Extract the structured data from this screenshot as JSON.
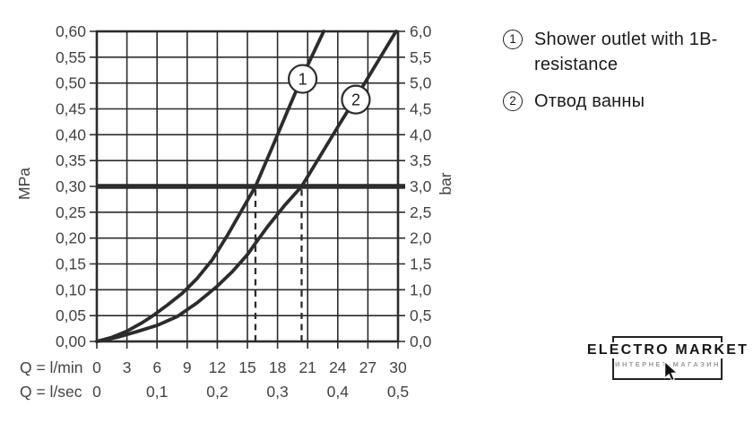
{
  "colors": {
    "background": "#ffffff",
    "line": "#2c2c2c",
    "axis_text": "#434343",
    "legend_text": "#1a1a1a",
    "logo_text": "#161616",
    "logo_subtext": "#9a9a9a"
  },
  "legend": {
    "items": [
      {
        "num": "1",
        "label": "Shower outlet with 1B-\nresistance"
      },
      {
        "num": "2",
        "label": "Отвод ванны"
      }
    ]
  },
  "logo": {
    "title": "ELECTRO MARKET",
    "subtitle": "ИНТЕРНЕТ-МАГАЗИН"
  },
  "chart_data": {
    "type": "line",
    "title": "",
    "grid": true,
    "x": {
      "label": "Q = l/min",
      "min": 0,
      "max": 30,
      "grid_step": 3,
      "tick_labels": [
        "0",
        "3",
        "6",
        "9",
        "12",
        "15",
        "18",
        "21",
        "24",
        "27",
        "30"
      ]
    },
    "x_secondary": {
      "label": "Q = l/sec",
      "ticks": [
        {
          "at": 0,
          "label": "0"
        },
        {
          "at": 6,
          "label": "0,1"
        },
        {
          "at": 12,
          "label": "0,2"
        },
        {
          "at": 18,
          "label": "0,3"
        },
        {
          "at": 24,
          "label": "0,4"
        },
        {
          "at": 30,
          "label": "0,5"
        }
      ]
    },
    "y_left": {
      "label": "MPa",
      "min": 0,
      "max": 0.6,
      "grid_step": 0.05,
      "tick_labels": [
        "0,60",
        "0,55",
        "0,50",
        "0,45",
        "0,40",
        "0,35",
        "0,30",
        "0,25",
        "0,20",
        "0,15",
        "0,10",
        "0,05",
        "0,00"
      ]
    },
    "y_right": {
      "label": "bar",
      "min": 0,
      "max": 6,
      "grid_step": 0.5,
      "tick_labels": [
        "6,0",
        "5,5",
        "5,0",
        "4,5",
        "4,0",
        "3,5",
        "3,0",
        "2,5",
        "2,0",
        "1,5",
        "1,0",
        "0,5",
        "0,0"
      ]
    },
    "reference_line": {
      "y_mpa": 0.3,
      "y_bar": 3.0
    },
    "dashed_guides_x_lmin": [
      15.8,
      20.4
    ],
    "series": [
      {
        "id": "1",
        "name": "Shower outlet with 1B-resistance",
        "marker": {
          "x": 20.5,
          "y": 0.508
        },
        "points": [
          [
            0,
            0
          ],
          [
            1.5,
            0.008
          ],
          [
            3,
            0.02
          ],
          [
            4.5,
            0.036
          ],
          [
            5.6,
            0.05
          ],
          [
            7,
            0.07
          ],
          [
            8.5,
            0.093
          ],
          [
            10,
            0.122
          ],
          [
            11.5,
            0.158
          ],
          [
            13,
            0.205
          ],
          [
            14.5,
            0.256
          ],
          [
            15.8,
            0.3
          ],
          [
            17.5,
            0.377
          ],
          [
            19,
            0.446
          ],
          [
            20.5,
            0.514
          ],
          [
            22.6,
            0.6
          ]
        ]
      },
      {
        "id": "2",
        "name": "Отвод ванны",
        "marker": {
          "x": 25.8,
          "y": 0.468
        },
        "points": [
          [
            0,
            0
          ],
          [
            2,
            0.008
          ],
          [
            4,
            0.019
          ],
          [
            6,
            0.031
          ],
          [
            8,
            0.048
          ],
          [
            10,
            0.075
          ],
          [
            12,
            0.107
          ],
          [
            13.5,
            0.135
          ],
          [
            15,
            0.168
          ],
          [
            15.8,
            0.19
          ],
          [
            17,
            0.222
          ],
          [
            18.7,
            0.263
          ],
          [
            20.4,
            0.3
          ],
          [
            22,
            0.351
          ],
          [
            24,
            0.415
          ],
          [
            26,
            0.478
          ],
          [
            28,
            0.542
          ],
          [
            29.8,
            0.6
          ]
        ]
      }
    ]
  }
}
